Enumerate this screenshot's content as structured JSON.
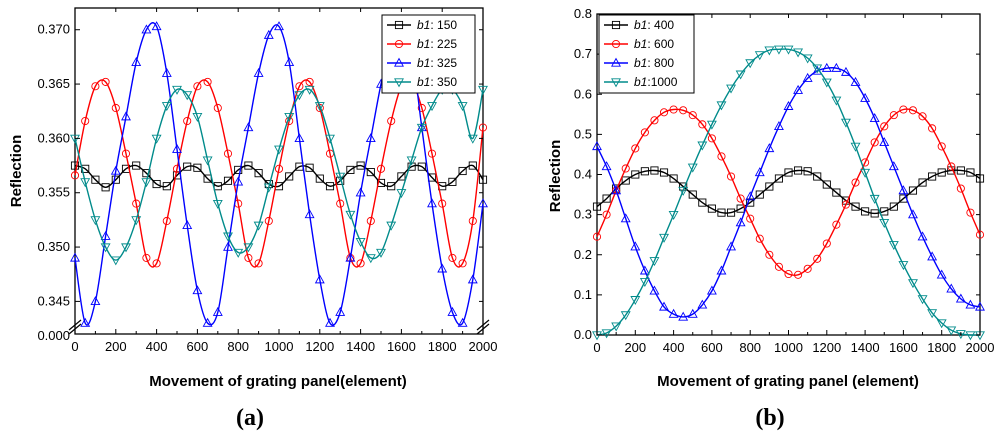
{
  "chart_data": [
    {
      "type": "line",
      "panel_label": "(a)",
      "xlabel": "Movement of grating panel(element)",
      "ylabel": "Reflection",
      "xlim": [
        0,
        2000
      ],
      "ylim": [
        0.342,
        0.372
      ],
      "xticks": [
        "0",
        "200",
        "400",
        "600",
        "800",
        "1000",
        "1200",
        "1400",
        "1600",
        "1800",
        "2000"
      ],
      "yticks": [
        "0.345",
        "0.350",
        "0.355",
        "0.360",
        "0.365",
        "0.370"
      ],
      "axis_break_label": "0.000",
      "legend_position": "top-right",
      "legend_italic": "b1",
      "series": [
        {
          "name": "b1: 150",
          "legend_suffix": ": 150",
          "color": "#000000",
          "marker": "square",
          "x": [
            0,
            50,
            100,
            150,
            200,
            250,
            300,
            350,
            400,
            450,
            500,
            550,
            600,
            650,
            700,
            750,
            800,
            850,
            900,
            950,
            1000,
            1050,
            1100,
            1150,
            1200,
            1250,
            1300,
            1350,
            1400,
            1450,
            1500,
            1550,
            1600,
            1650,
            1700,
            1750,
            1800,
            1850,
            1900,
            1950,
            2000
          ],
          "y": [
            0.3575,
            0.3572,
            0.3562,
            0.3555,
            0.3562,
            0.3572,
            0.3575,
            0.3568,
            0.3558,
            0.3556,
            0.3566,
            0.3574,
            0.3573,
            0.3563,
            0.3556,
            0.3561,
            0.3571,
            0.3575,
            0.3568,
            0.3558,
            0.3556,
            0.3565,
            0.3574,
            0.3573,
            0.3563,
            0.3556,
            0.3561,
            0.3571,
            0.3575,
            0.3569,
            0.3559,
            0.3556,
            0.3565,
            0.3574,
            0.3574,
            0.3564,
            0.3556,
            0.356,
            0.357,
            0.3575,
            0.3562
          ]
        },
        {
          "name": "b1: 225",
          "legend_suffix": ": 225",
          "color": "#ff0000",
          "marker": "circle",
          "x": [
            0,
            50,
            100,
            150,
            200,
            250,
            300,
            350,
            400,
            450,
            500,
            550,
            600,
            650,
            700,
            750,
            800,
            850,
            900,
            950,
            1000,
            1050,
            1100,
            1150,
            1200,
            1250,
            1300,
            1350,
            1400,
            1450,
            1500,
            1550,
            1600,
            1650,
            1700,
            1750,
            1800,
            1850,
            1900,
            1950,
            2000
          ],
          "y": [
            0.3566,
            0.3616,
            0.3648,
            0.3652,
            0.3628,
            0.3586,
            0.354,
            0.349,
            0.3485,
            0.3524,
            0.3572,
            0.3616,
            0.3648,
            0.3652,
            0.3628,
            0.3586,
            0.354,
            0.349,
            0.3485,
            0.3524,
            0.3572,
            0.3616,
            0.3648,
            0.3652,
            0.3628,
            0.3586,
            0.354,
            0.349,
            0.3485,
            0.3524,
            0.3572,
            0.3616,
            0.3648,
            0.3652,
            0.3628,
            0.3586,
            0.354,
            0.349,
            0.3485,
            0.3524,
            0.361
          ]
        },
        {
          "name": "b1: 325",
          "legend_suffix": ": 325",
          "color": "#0000ff",
          "marker": "triangle-up",
          "x": [
            0,
            50,
            100,
            150,
            200,
            250,
            300,
            350,
            400,
            450,
            500,
            550,
            600,
            650,
            700,
            750,
            800,
            850,
            900,
            950,
            1000,
            1050,
            1100,
            1150,
            1200,
            1250,
            1300,
            1350,
            1400,
            1450,
            1500,
            1550,
            1600,
            1650,
            1700,
            1750,
            1800,
            1850,
            1900,
            1950,
            2000
          ],
          "y": [
            0.349,
            0.343,
            0.345,
            0.351,
            0.357,
            0.362,
            0.367,
            0.37,
            0.3703,
            0.366,
            0.359,
            0.352,
            0.346,
            0.343,
            0.344,
            0.35,
            0.356,
            0.361,
            0.366,
            0.3695,
            0.3703,
            0.367,
            0.36,
            0.353,
            0.347,
            0.343,
            0.344,
            0.349,
            0.355,
            0.36,
            0.365,
            0.369,
            0.37,
            0.368,
            0.361,
            0.354,
            0.348,
            0.344,
            0.343,
            0.347,
            0.354
          ]
        },
        {
          "name": "b1: 350",
          "legend_suffix": ": 350",
          "color": "#008b8b",
          "marker": "triangle-down",
          "x": [
            0,
            50,
            100,
            150,
            200,
            250,
            300,
            350,
            400,
            450,
            500,
            550,
            600,
            650,
            700,
            750,
            800,
            850,
            900,
            950,
            1000,
            1050,
            1100,
            1150,
            1200,
            1250,
            1300,
            1350,
            1400,
            1450,
            1500,
            1550,
            1600,
            1650,
            1700,
            1750,
            1800,
            1850,
            1900,
            1950,
            2000
          ],
          "y": [
            0.36,
            0.356,
            0.3525,
            0.35,
            0.3488,
            0.35,
            0.3525,
            0.356,
            0.36,
            0.363,
            0.3645,
            0.364,
            0.362,
            0.358,
            0.354,
            0.351,
            0.3495,
            0.35,
            0.352,
            0.3555,
            0.359,
            0.362,
            0.364,
            0.3645,
            0.363,
            0.36,
            0.3565,
            0.353,
            0.3505,
            0.349,
            0.3495,
            0.352,
            0.355,
            0.358,
            0.361,
            0.363,
            0.3645,
            0.3645,
            0.363,
            0.36,
            0.3645
          ]
        }
      ]
    },
    {
      "type": "line",
      "panel_label": "(b)",
      "xlabel": "Movement of grating panel (element)",
      "ylabel": "Reflection",
      "xlim": [
        0,
        2000
      ],
      "ylim": [
        0.0,
        0.8
      ],
      "xticks": [
        "0",
        "200",
        "400",
        "600",
        "800",
        "1000",
        "1200",
        "1400",
        "1600",
        "1800",
        "2000"
      ],
      "yticks": [
        "0.0",
        "0.1",
        "0.2",
        "0.3",
        "0.4",
        "0.5",
        "0.6",
        "0.7",
        "0.8"
      ],
      "legend_position": "top-left",
      "legend_italic": "b1",
      "series": [
        {
          "name": "b1: 400",
          "legend_suffix": ": 400",
          "color": "#000000",
          "marker": "square",
          "x": [
            0,
            50,
            100,
            150,
            200,
            250,
            300,
            350,
            400,
            450,
            500,
            550,
            600,
            650,
            700,
            750,
            800,
            850,
            900,
            950,
            1000,
            1050,
            1100,
            1150,
            1200,
            1250,
            1300,
            1350,
            1400,
            1450,
            1500,
            1550,
            1600,
            1650,
            1700,
            1750,
            1800,
            1850,
            1900,
            1950,
            2000
          ],
          "y": [
            0.32,
            0.34,
            0.365,
            0.385,
            0.4,
            0.408,
            0.41,
            0.405,
            0.39,
            0.37,
            0.35,
            0.33,
            0.315,
            0.305,
            0.305,
            0.315,
            0.33,
            0.35,
            0.37,
            0.39,
            0.405,
            0.41,
            0.408,
            0.395,
            0.375,
            0.355,
            0.335,
            0.32,
            0.308,
            0.303,
            0.308,
            0.32,
            0.34,
            0.36,
            0.38,
            0.395,
            0.405,
            0.41,
            0.41,
            0.405,
            0.39
          ]
        },
        {
          "name": "b1: 600",
          "legend_suffix": ": 600",
          "color": "#ff0000",
          "marker": "circle",
          "x": [
            0,
            50,
            100,
            150,
            200,
            250,
            300,
            350,
            400,
            450,
            500,
            550,
            600,
            650,
            700,
            750,
            800,
            850,
            900,
            950,
            1000,
            1050,
            1100,
            1150,
            1200,
            1250,
            1300,
            1350,
            1400,
            1450,
            1500,
            1550,
            1600,
            1650,
            1700,
            1750,
            1800,
            1850,
            1900,
            1950,
            2000
          ],
          "y": [
            0.245,
            0.3,
            0.36,
            0.415,
            0.465,
            0.505,
            0.535,
            0.555,
            0.562,
            0.56,
            0.548,
            0.525,
            0.49,
            0.445,
            0.395,
            0.34,
            0.29,
            0.24,
            0.2,
            0.17,
            0.152,
            0.15,
            0.165,
            0.19,
            0.228,
            0.275,
            0.325,
            0.38,
            0.43,
            0.48,
            0.52,
            0.548,
            0.562,
            0.56,
            0.545,
            0.515,
            0.47,
            0.42,
            0.365,
            0.305,
            0.25
          ]
        },
        {
          "name": "b1: 800",
          "legend_suffix": ": 800",
          "color": "#0000ff",
          "marker": "triangle-up",
          "x": [
            0,
            50,
            100,
            150,
            200,
            250,
            300,
            350,
            400,
            450,
            500,
            550,
            600,
            650,
            700,
            750,
            800,
            850,
            900,
            950,
            1000,
            1050,
            1100,
            1150,
            1200,
            1250,
            1300,
            1350,
            1400,
            1450,
            1500,
            1550,
            1600,
            1650,
            1700,
            1750,
            1800,
            1850,
            1900,
            1950,
            2000
          ],
          "y": [
            0.47,
            0.42,
            0.36,
            0.29,
            0.22,
            0.16,
            0.11,
            0.07,
            0.052,
            0.045,
            0.052,
            0.075,
            0.11,
            0.16,
            0.22,
            0.28,
            0.345,
            0.405,
            0.465,
            0.52,
            0.57,
            0.61,
            0.64,
            0.658,
            0.665,
            0.665,
            0.655,
            0.63,
            0.59,
            0.54,
            0.48,
            0.42,
            0.36,
            0.3,
            0.245,
            0.195,
            0.15,
            0.115,
            0.09,
            0.075,
            0.07
          ]
        },
        {
          "name": "b1:1000",
          "legend_suffix": ":1000",
          "color": "#008b8b",
          "marker": "triangle-down",
          "x": [
            0,
            50,
            100,
            150,
            200,
            250,
            300,
            350,
            400,
            450,
            500,
            550,
            600,
            650,
            700,
            750,
            800,
            850,
            900,
            950,
            1000,
            1050,
            1100,
            1150,
            1200,
            1250,
            1300,
            1350,
            1400,
            1450,
            1500,
            1550,
            1600,
            1650,
            1700,
            1750,
            1800,
            1850,
            1900,
            1950,
            2000
          ],
          "y": [
            0.0,
            0.005,
            0.022,
            0.05,
            0.088,
            0.133,
            0.185,
            0.243,
            0.3,
            0.36,
            0.418,
            0.473,
            0.525,
            0.573,
            0.615,
            0.65,
            0.678,
            0.698,
            0.71,
            0.712,
            0.712,
            0.705,
            0.69,
            0.665,
            0.63,
            0.585,
            0.53,
            0.47,
            0.405,
            0.34,
            0.28,
            0.225,
            0.175,
            0.13,
            0.09,
            0.055,
            0.03,
            0.012,
            0.003,
            0.0,
            0.0
          ]
        }
      ]
    }
  ]
}
